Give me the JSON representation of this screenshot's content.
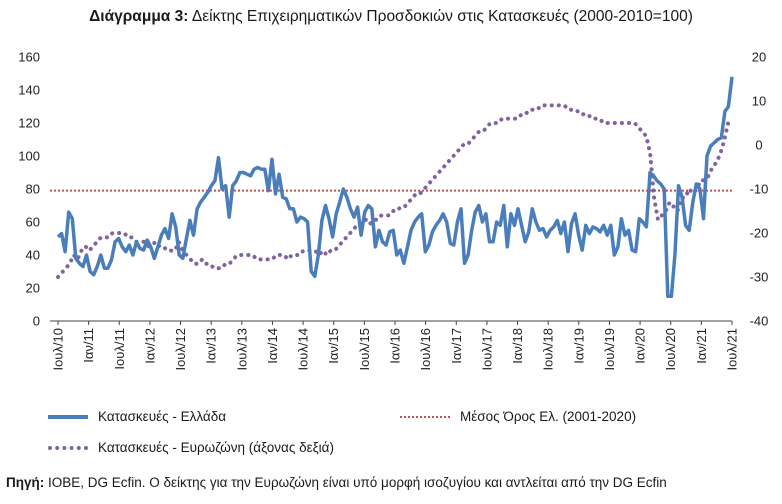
{
  "title_bold": "Διάγραμμα 3:",
  "title_rest": " Δείκτης Επιχειρηματικών Προσδοκιών στις Κατασκευές (2000-2010=100)",
  "source_label": "Πηγή:",
  "source_text": " ΙΟΒΕ, DG Ecfin. Ο δείκτης για την Ευρωζώνη είναι υπό μορφή ισοζυγίου και αντλείται από την DG Ecfin",
  "colors": {
    "greece": "#4a7ebb",
    "eurozone": "#8064a2",
    "mean": "#c0504d"
  },
  "chart_data": {
    "type": "line",
    "x_start": "Ιουλ/10",
    "x_end": "Ιουλ/21",
    "x_ticks": [
      "Ιουλ/10",
      "Ιαν/11",
      "Ιουλ/11",
      "Ιαν/12",
      "Ιουλ/12",
      "Ιαν/13",
      "Ιουλ/13",
      "Ιαν/14",
      "Ιουλ/14",
      "Ιαν/15",
      "Ιουλ/15",
      "Ιαν/16",
      "Ιουλ/16",
      "Ιαν/17",
      "Ιουλ/17",
      "Ιαν/18",
      "Ιουλ/18",
      "Ιαν/19",
      "Ιουλ/19",
      "Ιαν/20",
      "Ιουλ/20",
      "Ιαν/21",
      "Ιουλ/21"
    ],
    "y_left": {
      "min": 0,
      "max": 160,
      "ticks": [
        0,
        20,
        40,
        60,
        80,
        100,
        120,
        140,
        160
      ]
    },
    "y_right": {
      "min": -40,
      "max": 20,
      "ticks": [
        -40,
        -30,
        -20,
        -10,
        0,
        10,
        20
      ]
    },
    "series": [
      {
        "name": "Κατασκευές  - Ελλάδα",
        "axis": "left",
        "style": "solid",
        "values": [
          51,
          53,
          42,
          66,
          62,
          38,
          35,
          33,
          40,
          30,
          28,
          33,
          40,
          32,
          32,
          37,
          48,
          50,
          45,
          42,
          46,
          40,
          48,
          44,
          43,
          49,
          45,
          38,
          45,
          52,
          56,
          50,
          65,
          57,
          40,
          38,
          50,
          61,
          52,
          68,
          72,
          75,
          78,
          82,
          85,
          99,
          80,
          82,
          63,
          82,
          85,
          90,
          90,
          89,
          88,
          92,
          93,
          92,
          92,
          79,
          98,
          77,
          89,
          75,
          74,
          68,
          68,
          60,
          63,
          62,
          60,
          30,
          27,
          40,
          61,
          70,
          62,
          51,
          65,
          72,
          80,
          75,
          68,
          63,
          69,
          52,
          66,
          70,
          68,
          45,
          55,
          48,
          46,
          54,
          55,
          40,
          43,
          35,
          45,
          55,
          60,
          63,
          65,
          42,
          46,
          54,
          58,
          61,
          65,
          60,
          47,
          46,
          60,
          68,
          35,
          40,
          55,
          66,
          70,
          60,
          65,
          48,
          48,
          60,
          58,
          70,
          45,
          65,
          58,
          68,
          58,
          48,
          54,
          68,
          60,
          55,
          56,
          51,
          55,
          57,
          61,
          53,
          60,
          42,
          59,
          65,
          52,
          43,
          58,
          53,
          57,
          56,
          54,
          58,
          52,
          58,
          40,
          45,
          62,
          52,
          55,
          43,
          42,
          62,
          60,
          57,
          90,
          88,
          85,
          83,
          80,
          15,
          15,
          40,
          82,
          75,
          58,
          55,
          72,
          83,
          80,
          62,
          100,
          106,
          108,
          110,
          111,
          127,
          130,
          148
        ]
      },
      {
        "name": "Κατασκευές - Ευρωζώνη (άξονας δεξιά)",
        "axis": "right",
        "style": "dotted",
        "values": [
          -30,
          -29,
          -28,
          -27,
          -25,
          -26,
          -24,
          -23,
          -24,
          -23,
          -22,
          -21,
          -21,
          -21,
          -20,
          -20,
          -20,
          -20,
          -21,
          -21,
          -22,
          -22,
          -22,
          -23,
          -23,
          -22,
          -23,
          -23,
          -24,
          -24,
          -24,
          -22,
          -24,
          -25,
          -26,
          -27,
          -27,
          -26,
          -27,
          -27,
          -28,
          -28,
          -28,
          -27,
          -27,
          -26,
          -25,
          -25,
          -25,
          -25,
          -25,
          -26,
          -26,
          -26,
          -26,
          -26,
          -25,
          -25,
          -25,
          -26,
          -25,
          -25,
          -25,
          -24,
          -24,
          -24,
          -24,
          -25,
          -24,
          -25,
          -24,
          -24,
          -23,
          -22,
          -21,
          -20,
          -19,
          -18,
          -18,
          -17,
          -18,
          -17,
          -17,
          -16,
          -16,
          -16,
          -15,
          -15,
          -14,
          -14,
          -13,
          -12,
          -11,
          -11,
          -10,
          -9,
          -8,
          -7,
          -6,
          -5,
          -4,
          -3,
          -2,
          -1,
          0,
          0,
          1,
          2,
          3,
          3,
          4,
          5,
          5,
          5,
          6,
          6,
          6,
          6,
          6,
          7,
          7,
          8,
          8,
          8,
          9,
          9,
          9,
          9,
          9,
          9,
          9,
          8,
          8,
          8,
          7,
          7,
          7,
          6,
          6,
          6,
          5,
          5,
          5,
          5,
          5,
          5,
          5,
          5,
          5,
          4,
          3,
          2,
          -2,
          -12,
          -17,
          -16,
          -15,
          -13,
          -14,
          -15,
          -12,
          -12,
          -10,
          -11,
          -10,
          -8,
          -8,
          -7,
          -5,
          -4,
          -2,
          1,
          5,
          5
        ]
      }
    ],
    "reference_line": {
      "name": "Μέσος Όρος Ελ. (2001-2020)",
      "axis": "left",
      "value": 79
    },
    "legend_position": "bottom",
    "grid": false
  }
}
